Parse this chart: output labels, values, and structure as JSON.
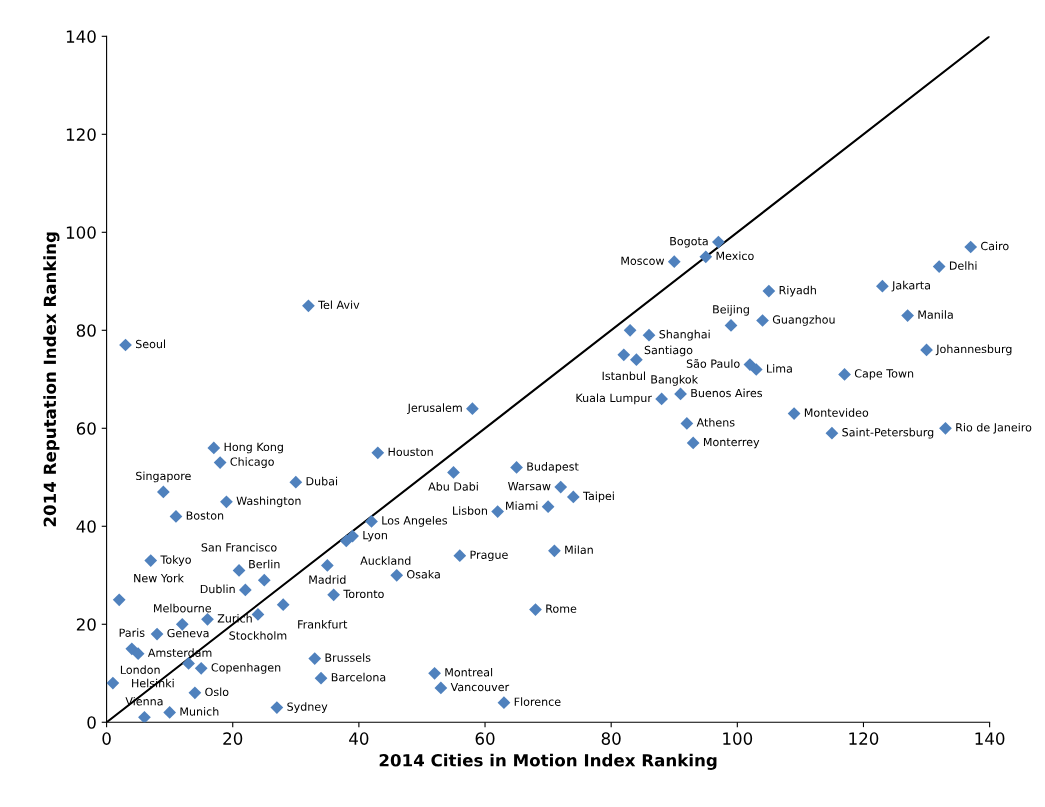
{
  "chart_data": {
    "type": "scatter",
    "xlabel": "2014 Cities in Motion Index Ranking",
    "ylabel": "2014 Reputation Index Ranking",
    "xlim": [
      0,
      140
    ],
    "ylim": [
      0,
      140
    ],
    "xticks": [
      0,
      20,
      40,
      60,
      80,
      100,
      120,
      140
    ],
    "yticks": [
      0,
      20,
      40,
      60,
      80,
      100,
      120,
      140
    ],
    "grid": false,
    "legend": false,
    "marker": "diamond",
    "series": [
      {
        "type": "scatter",
        "color": "#4f81bd",
        "x": [
          3,
          32,
          17,
          18,
          9,
          19,
          11,
          30,
          43,
          58,
          55,
          65,
          72,
          74,
          70,
          62,
          42,
          39,
          38,
          7,
          21,
          25,
          35,
          56,
          46,
          71,
          22,
          36,
          28,
          24,
          68,
          2,
          16,
          12,
          8,
          4,
          5,
          13,
          15,
          33,
          34,
          52,
          53,
          63,
          1,
          14,
          10,
          6,
          27,
          90,
          97,
          95,
          105,
          99,
          104,
          83,
          86,
          82,
          84,
          102,
          103,
          91,
          88,
          92,
          93,
          109,
          115,
          117,
          133,
          130,
          127,
          123,
          132,
          137
        ],
        "values": [
          77,
          85,
          56,
          53,
          47,
          45,
          42,
          49,
          55,
          64,
          51,
          52,
          48,
          46,
          44,
          43,
          41,
          38,
          37,
          33,
          31,
          29,
          32,
          34,
          30,
          35,
          27,
          26,
          24,
          22,
          23,
          25,
          21,
          20,
          18,
          15,
          14,
          12,
          11,
          13,
          9,
          10,
          7,
          4,
          8,
          6,
          2,
          1,
          3,
          94,
          98,
          95,
          88,
          81,
          82,
          80,
          79,
          75,
          74,
          73,
          72,
          67,
          66,
          61,
          57,
          63,
          59,
          71,
          60,
          76,
          83,
          89,
          93,
          97
        ],
        "value_labels": [
          "Seoul",
          "Tel Aviv",
          "Hong Kong",
          "Chicago",
          "Singapore",
          "Washington",
          "Boston",
          "Dubai",
          "Houston",
          "Jerusalem",
          "Abu Dabi",
          "Budapest",
          "Warsaw",
          "Taipei",
          "Miami",
          "Lisbon",
          "Los Angeles",
          "Lyon",
          "Auckland",
          "Tokyo",
          "San Francisco",
          "Berlin",
          "Madrid",
          "Prague",
          "Osaka",
          "Milan",
          "Dublin",
          "Toronto",
          "Frankfurt",
          "Stockholm",
          "Rome",
          "New York",
          "Zurich",
          "Melbourne",
          "Geneva",
          "Paris",
          "Amsterdam",
          "Helsinki",
          "Copenhagen",
          "Brussels",
          "Barcelona",
          "Montreal",
          "Vancouver",
          "Florence",
          "London",
          "Oslo",
          "Munich",
          "Vienna",
          "Sydney",
          "Moscow",
          "Bogota",
          "Mexico",
          "Riyadh",
          "Beijing",
          "Guangzhou",
          "Santiago",
          "Shanghai",
          "Istanbul",
          "Bangkok",
          "São Paulo",
          "Lima",
          "Buenos Aires",
          "Kuala Lumpur",
          "Athens",
          "Monterrey",
          "Montevideo",
          "Saint-Petersburg",
          "Cape Town",
          "Rio de Janeiro",
          "Johannesburg",
          "Manila",
          "Jakarta",
          "Delhi",
          "Cairo"
        ]
      },
      {
        "type": "line",
        "color": "#000000",
        "x": [
          0,
          140
        ],
        "values": [
          0,
          140
        ],
        "marker": "none",
        "line_style": "solid"
      }
    ]
  }
}
